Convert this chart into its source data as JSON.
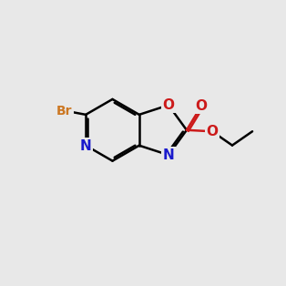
{
  "bg_color": "#e8e8e8",
  "bond_color": "#000000",
  "bond_width": 1.8,
  "atom_colors": {
    "N": "#1a1acc",
    "O": "#cc1a1a",
    "Br": "#cc7722",
    "C": "#000000"
  },
  "font_size_atom": 11,
  "font_size_br": 10,
  "bl": 1.15
}
